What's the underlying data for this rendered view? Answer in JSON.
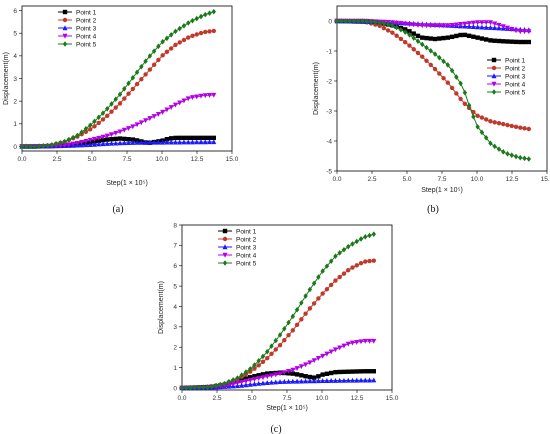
{
  "figure": {
    "panel_labels": [
      "(a)",
      "(b)",
      "(c)"
    ]
  },
  "colors": {
    "point_1": "#000000",
    "point_2": "#c0392b",
    "point_3": "#1a1aff",
    "point_4": "#b300e6",
    "point_5": "#1a7a1a"
  },
  "markers": {
    "point_1": "square",
    "point_2": "circle",
    "point_3": "triangle-up",
    "point_4": "triangle-down",
    "point_5": "diamond"
  },
  "chart_data": [
    {
      "type": "line",
      "title": "",
      "panel": "(a)",
      "xlabel": "Step(1 × 10⁵)",
      "ylabel": "Displacement(m)",
      "xlim": [
        0,
        15
      ],
      "ylim": [
        -0.2,
        6.2
      ],
      "xticks": [
        "0.0",
        "2.5",
        "5.0",
        "7.5",
        "10.0",
        "12.5",
        "15.0"
      ],
      "yticks": [
        "0",
        "1",
        "2",
        "3",
        "4",
        "5",
        "6"
      ],
      "legend_position": "top-left",
      "series": [
        {
          "name": "Point  1",
          "points": [
            [
              0,
              0
            ],
            [
              1,
              0
            ],
            [
              2,
              0.02
            ],
            [
              3,
              0.05
            ],
            [
              4,
              0.1
            ],
            [
              5,
              0.2
            ],
            [
              6,
              0.3
            ],
            [
              7,
              0.35
            ],
            [
              8,
              0.3
            ],
            [
              9,
              0.15
            ],
            [
              10,
              0.25
            ],
            [
              10.5,
              0.35
            ],
            [
              11,
              0.38
            ],
            [
              12,
              0.38
            ],
            [
              13,
              0.38
            ],
            [
              13.7,
              0.38
            ]
          ]
        },
        {
          "name": "Point  2",
          "points": [
            [
              0,
              0
            ],
            [
              1,
              0
            ],
            [
              2,
              0.05
            ],
            [
              3,
              0.2
            ],
            [
              4,
              0.45
            ],
            [
              5,
              0.8
            ],
            [
              6,
              1.3
            ],
            [
              7,
              1.9
            ],
            [
              8,
              2.6
            ],
            [
              9,
              3.3
            ],
            [
              10,
              4.0
            ],
            [
              11,
              4.5
            ],
            [
              12,
              4.85
            ],
            [
              13,
              5.05
            ],
            [
              13.7,
              5.1
            ]
          ]
        },
        {
          "name": "Point  3",
          "points": [
            [
              0,
              0
            ],
            [
              2,
              0.01
            ],
            [
              3,
              0.03
            ],
            [
              4,
              0.05
            ],
            [
              5,
              0.08
            ],
            [
              6,
              0.12
            ],
            [
              7,
              0.15
            ],
            [
              8,
              0.17
            ],
            [
              10,
              0.18
            ],
            [
              12,
              0.19
            ],
            [
              13.7,
              0.2
            ]
          ]
        },
        {
          "name": "Point  4",
          "points": [
            [
              0,
              0
            ],
            [
              2,
              0.01
            ],
            [
              3,
              0.05
            ],
            [
              4,
              0.15
            ],
            [
              5,
              0.3
            ],
            [
              6,
              0.45
            ],
            [
              7,
              0.65
            ],
            [
              8,
              0.9
            ],
            [
              9,
              1.2
            ],
            [
              10,
              1.5
            ],
            [
              11,
              1.85
            ],
            [
              12,
              2.15
            ],
            [
              13,
              2.25
            ],
            [
              13.7,
              2.27
            ]
          ]
        },
        {
          "name": "Point  5",
          "points": [
            [
              0,
              0
            ],
            [
              1,
              0
            ],
            [
              2,
              0.05
            ],
            [
              3,
              0.2
            ],
            [
              4,
              0.5
            ],
            [
              5,
              1.0
            ],
            [
              6,
              1.6
            ],
            [
              7,
              2.3
            ],
            [
              8,
              3.1
            ],
            [
              9,
              3.9
            ],
            [
              10,
              4.6
            ],
            [
              11,
              5.1
            ],
            [
              12,
              5.5
            ],
            [
              13,
              5.8
            ],
            [
              13.7,
              5.95
            ]
          ]
        }
      ]
    },
    {
      "type": "line",
      "title": "",
      "panel": "(b)",
      "xlabel": "Step(1 × 10⁵)",
      "ylabel": "Displacement(m)",
      "xlim": [
        0,
        15
      ],
      "ylim": [
        -5,
        0.5
      ],
      "xticks": [
        "0.0",
        "2.5",
        "5.0",
        "7.5",
        "10.0",
        "12.5",
        "15.0"
      ],
      "yticks": [
        "-5",
        "-4",
        "-3",
        "-2",
        "-1",
        "0"
      ],
      "legend_position": "right",
      "series": [
        {
          "name": "Point  1",
          "points": [
            [
              0,
              0
            ],
            [
              2,
              -0.02
            ],
            [
              3,
              -0.05
            ],
            [
              4,
              -0.15
            ],
            [
              5,
              -0.3
            ],
            [
              6,
              -0.55
            ],
            [
              7,
              -0.6
            ],
            [
              8,
              -0.55
            ],
            [
              9,
              -0.45
            ],
            [
              10,
              -0.55
            ],
            [
              11,
              -0.65
            ],
            [
              12,
              -0.68
            ],
            [
              13,
              -0.7
            ],
            [
              13.7,
              -0.7
            ]
          ]
        },
        {
          "name": "Point  2",
          "points": [
            [
              0,
              0
            ],
            [
              2,
              -0.03
            ],
            [
              3,
              -0.15
            ],
            [
              4,
              -0.4
            ],
            [
              5,
              -0.75
            ],
            [
              6,
              -1.15
            ],
            [
              7,
              -1.6
            ],
            [
              8,
              -2.1
            ],
            [
              9,
              -2.7
            ],
            [
              10,
              -3.15
            ],
            [
              11,
              -3.35
            ],
            [
              12,
              -3.45
            ],
            [
              13,
              -3.55
            ],
            [
              13.7,
              -3.6
            ]
          ]
        },
        {
          "name": "Point  3",
          "points": [
            [
              0,
              0
            ],
            [
              2,
              -0.02
            ],
            [
              4,
              -0.05
            ],
            [
              6,
              -0.1
            ],
            [
              8,
              -0.15
            ],
            [
              10,
              -0.2
            ],
            [
              12,
              -0.25
            ],
            [
              13.7,
              -0.3
            ]
          ]
        },
        {
          "name": "Point  4",
          "points": [
            [
              0,
              0
            ],
            [
              2,
              0
            ],
            [
              4,
              -0.05
            ],
            [
              6,
              -0.15
            ],
            [
              8,
              -0.15
            ],
            [
              9,
              -0.1
            ],
            [
              10,
              -0.05
            ],
            [
              11,
              -0.05
            ],
            [
              12,
              -0.2
            ],
            [
              13,
              -0.35
            ],
            [
              13.7,
              -0.35
            ]
          ]
        },
        {
          "name": "Point  5",
          "points": [
            [
              0,
              0
            ],
            [
              2,
              0
            ],
            [
              3,
              -0.05
            ],
            [
              4,
              -0.15
            ],
            [
              5,
              -0.4
            ],
            [
              6,
              -0.75
            ],
            [
              7,
              -1.1
            ],
            [
              8,
              -1.5
            ],
            [
              9,
              -2.2
            ],
            [
              9.5,
              -2.9
            ],
            [
              10,
              -3.5
            ],
            [
              11,
              -4.1
            ],
            [
              12,
              -4.4
            ],
            [
              13,
              -4.55
            ],
            [
              13.7,
              -4.6
            ]
          ]
        }
      ]
    },
    {
      "type": "line",
      "title": "",
      "panel": "(c)",
      "xlabel": "Step(1 × 10⁵)",
      "ylabel": "Displacement(m)",
      "xlim": [
        0,
        15
      ],
      "ylim": [
        -0.1,
        8
      ],
      "xticks": [
        "0.0",
        "2.5",
        "5.0",
        "7.5",
        "10.0",
        "12.5",
        "15.0"
      ],
      "yticks": [
        "0",
        "1",
        "2",
        "3",
        "4",
        "5",
        "6",
        "7",
        "8"
      ],
      "legend_position": "top-left",
      "series": [
        {
          "name": "Point  1",
          "points": [
            [
              0,
              0
            ],
            [
              2,
              0.05
            ],
            [
              3,
              0.15
            ],
            [
              4,
              0.35
            ],
            [
              5,
              0.55
            ],
            [
              6,
              0.7
            ],
            [
              7,
              0.75
            ],
            [
              8,
              0.7
            ],
            [
              9,
              0.55
            ],
            [
              9.5,
              0.5
            ],
            [
              10,
              0.65
            ],
            [
              11,
              0.78
            ],
            [
              12,
              0.8
            ],
            [
              13,
              0.82
            ],
            [
              13.7,
              0.82
            ]
          ]
        },
        {
          "name": "Point  2",
          "points": [
            [
              0,
              0
            ],
            [
              1,
              0.02
            ],
            [
              2,
              0.05
            ],
            [
              3,
              0.2
            ],
            [
              4,
              0.45
            ],
            [
              5,
              0.85
            ],
            [
              6,
              1.4
            ],
            [
              7,
              2.1
            ],
            [
              8,
              2.9
            ],
            [
              9,
              3.8
            ],
            [
              10,
              4.6
            ],
            [
              11,
              5.3
            ],
            [
              12,
              5.85
            ],
            [
              13,
              6.2
            ],
            [
              13.7,
              6.25
            ]
          ]
        },
        {
          "name": "Point  3",
          "points": [
            [
              0,
              0
            ],
            [
              2,
              0.02
            ],
            [
              4,
              0.1
            ],
            [
              5,
              0.18
            ],
            [
              6,
              0.25
            ],
            [
              7,
              0.3
            ],
            [
              8,
              0.32
            ],
            [
              10,
              0.35
            ],
            [
              12,
              0.37
            ],
            [
              13.7,
              0.38
            ]
          ]
        },
        {
          "name": "Point  4",
          "points": [
            [
              0,
              0
            ],
            [
              2,
              0.02
            ],
            [
              3,
              0.1
            ],
            [
              4,
              0.25
            ],
            [
              5,
              0.4
            ],
            [
              6,
              0.55
            ],
            [
              7,
              0.7
            ],
            [
              8,
              0.9
            ],
            [
              9,
              1.2
            ],
            [
              10,
              1.55
            ],
            [
              11,
              1.9
            ],
            [
              12,
              2.2
            ],
            [
              13,
              2.3
            ],
            [
              13.7,
              2.3
            ]
          ]
        },
        {
          "name": "Point  5",
          "points": [
            [
              0,
              0
            ],
            [
              1,
              0.02
            ],
            [
              2,
              0.05
            ],
            [
              3,
              0.2
            ],
            [
              4,
              0.5
            ],
            [
              5,
              1.0
            ],
            [
              6,
              1.7
            ],
            [
              7,
              2.6
            ],
            [
              8,
              3.6
            ],
            [
              9,
              4.7
            ],
            [
              10,
              5.7
            ],
            [
              11,
              6.5
            ],
            [
              12,
              7.0
            ],
            [
              13,
              7.4
            ],
            [
              13.7,
              7.55
            ]
          ]
        }
      ]
    }
  ]
}
